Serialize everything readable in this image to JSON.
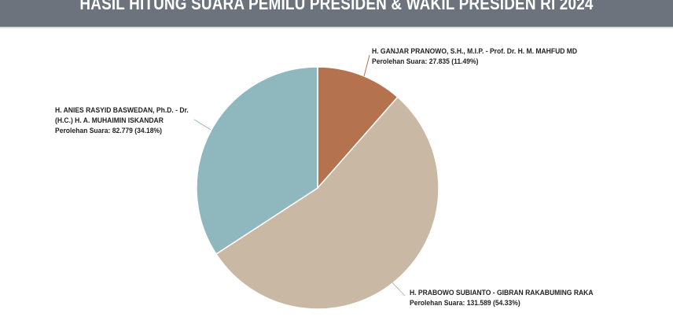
{
  "header": {
    "title": "HASIL HITUNG SUARA PEMILU PRESIDEN & WAKIL PRESIDEN RI 2024"
  },
  "chart_data": {
    "type": "pie",
    "title": "HASIL HITUNG SUARA PEMILU PRESIDEN & WAKIL PRESIDEN RI 2024",
    "start_angle": "top, clockwise",
    "slices": [
      {
        "label": "H. GANJAR PRANOWO, S.H., M.I.P. - Prof. Dr. H. M. MAHFUD MD",
        "value_text": "Perolehan Suara: 27.835 (11.49%)",
        "value": 27835,
        "percent": 11.49,
        "color": "#b5724f"
      },
      {
        "label": "H. PRABOWO SUBIANTO - GIBRAN RAKABUMING RAKA",
        "value_text": "Perolehan Suara: 131.589 (54.33%)",
        "value": 131589,
        "percent": 54.33,
        "color": "#c9b8a3"
      },
      {
        "label_lines": [
          "H. ANIES RASYID BASWEDAN, Ph.D. - Dr.",
          "(H.C.) H. A. MUHAIMIN ISKANDAR"
        ],
        "value_text": "Perolehan Suara: 82.779 (34.18%)",
        "value": 82779,
        "percent": 34.18,
        "color": "#8eb8bd"
      }
    ]
  }
}
